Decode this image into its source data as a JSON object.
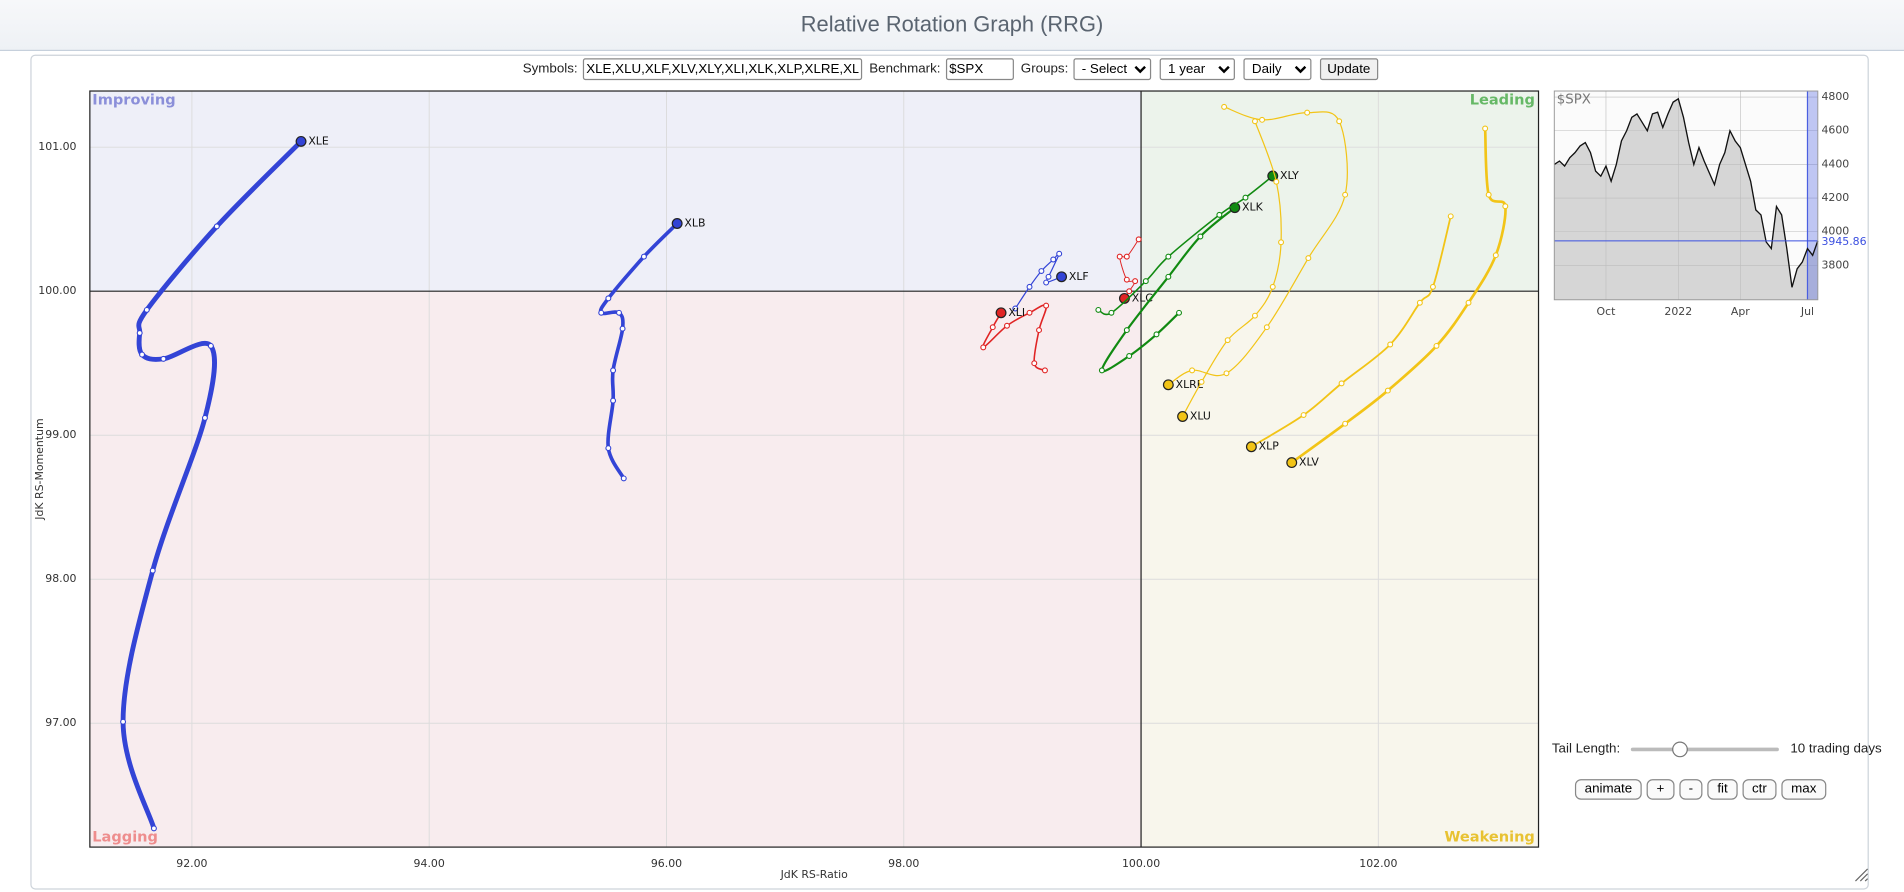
{
  "header": {
    "title": "Relative Rotation Graph (RRG)"
  },
  "controls": {
    "symbols_label": "Symbols:",
    "symbols": "XLE,XLU,XLF,XLV,XLY,XLI,XLK,XLP,XLRE,XLC,XLB",
    "benchmark_label": "Benchmark:",
    "benchmark": "$SPX",
    "groups_label": "Groups:",
    "groups": "- Select -",
    "period": "1 year",
    "frequency": "Daily",
    "update": "Update",
    "tail_length_label": "Tail Length:",
    "tail_length": "10 trading days",
    "buttons": [
      "animate",
      "+",
      "-",
      "fit",
      "ctr",
      "max"
    ]
  },
  "chart_data": [
    {
      "type": "scatter",
      "xlabel": "JdK RS-Ratio",
      "ylabel": "JdK RS-Momentum",
      "xlim": [
        91.14,
        103.35
      ],
      "ylim": [
        96.14,
        101.39
      ],
      "xticks": [
        {
          "value": 92,
          "label": "92.00"
        },
        {
          "value": 94,
          "label": "94.00"
        },
        {
          "value": 96,
          "label": "96.00"
        },
        {
          "value": 98,
          "label": "98.00"
        },
        {
          "value": 100,
          "label": "100.00"
        },
        {
          "value": 102,
          "label": "102.00"
        }
      ],
      "yticks": [
        {
          "value": 97,
          "label": "97.00"
        },
        {
          "value": 98,
          "label": "98.00"
        },
        {
          "value": 99,
          "label": "99.00"
        },
        {
          "value": 100,
          "label": "100.00"
        },
        {
          "value": 101,
          "label": "101.00"
        }
      ],
      "grid": true,
      "quadrant_center": [
        100,
        100
      ],
      "quadrants": [
        {
          "name": "Improving",
          "corner": "top-left",
          "color": "#8b8fd9",
          "background": "#eeeff8"
        },
        {
          "name": "Leading",
          "corner": "top-right",
          "color": "#66b866",
          "background": "#ecf3eb"
        },
        {
          "name": "Lagging",
          "corner": "bottom-left",
          "color": "#ee8d8d",
          "background": "#f8ecee"
        },
        {
          "name": "Weakening",
          "corner": "bottom-right",
          "color": "#e8c232",
          "background": "#f8f6ec"
        }
      ],
      "series": [
        {
          "name": "XLE",
          "color": "#3344d6",
          "width": 4,
          "x": [
            91.68,
            91.42,
            91.67,
            92.11,
            92.16,
            91.76,
            91.58,
            91.56,
            91.62,
            92.21,
            92.92
          ],
          "y": [
            96.27,
            97.01,
            98.06,
            99.12,
            99.62,
            99.53,
            99.56,
            99.71,
            99.87,
            100.45,
            101.04
          ]
        },
        {
          "name": "XLB",
          "color": "#3344d6",
          "width": 3,
          "x": [
            95.64,
            95.51,
            95.55,
            95.55,
            95.63,
            95.6,
            95.45,
            95.51,
            95.81,
            96.09
          ],
          "y": [
            98.7,
            98.91,
            99.24,
            99.45,
            99.74,
            99.85,
            99.85,
            99.95,
            100.24,
            100.47
          ]
        },
        {
          "name": "XLF",
          "color": "#3344d6",
          "width": 1,
          "x": [
            98.94,
            99.06,
            99.16,
            99.26,
            99.31,
            99.22,
            99.2,
            99.33
          ],
          "y": [
            99.88,
            100.03,
            100.14,
            100.22,
            100.26,
            100.1,
            100.06,
            100.1
          ]
        },
        {
          "name": "XLI",
          "color": "#e02424",
          "width": 1.3,
          "x": [
            99.19,
            99.1,
            99.14,
            99.2,
            99.06,
            98.87,
            98.67,
            98.75,
            98.82
          ],
          "y": [
            99.45,
            99.5,
            99.73,
            99.9,
            99.85,
            99.76,
            99.61,
            99.75,
            99.85
          ]
        },
        {
          "name": "XLC",
          "color": "#e02424",
          "width": 0.8,
          "x": [
            99.98,
            99.88,
            99.82,
            99.88,
            99.95,
            99.9,
            99.86
          ],
          "y": [
            100.36,
            100.24,
            100.24,
            100.08,
            100.07,
            100.0,
            99.95
          ]
        },
        {
          "name": "XLK",
          "color": "#118a11",
          "width": 1.8,
          "x": [
            100.32,
            100.13,
            99.9,
            99.67,
            99.88,
            100.23,
            100.5,
            100.79
          ],
          "y": [
            99.85,
            99.7,
            99.55,
            99.45,
            99.73,
            100.1,
            100.38,
            100.58
          ]
        },
        {
          "name": "XLY",
          "color": "#118a11",
          "width": 1.3,
          "x": [
            99.64,
            99.75,
            100.04,
            100.23,
            100.66,
            100.88,
            101.11
          ],
          "y": [
            99.87,
            99.85,
            100.07,
            100.24,
            100.53,
            100.65,
            100.8
          ]
        },
        {
          "name": "XLRE",
          "color": "#f2c417",
          "width": 1,
          "x": [
            100.7,
            101.02,
            101.4,
            101.67,
            101.72,
            101.41,
            101.06,
            100.72,
            100.43,
            100.23
          ],
          "y": [
            101.28,
            101.19,
            101.24,
            101.18,
            100.67,
            100.23,
            99.75,
            99.43,
            99.45,
            99.35
          ]
        },
        {
          "name": "XLU",
          "color": "#f2c417",
          "width": 1,
          "x": [
            100.96,
            101.14,
            101.18,
            101.11,
            100.96,
            100.73,
            100.51,
            100.35
          ],
          "y": [
            101.18,
            100.76,
            100.34,
            100.03,
            99.83,
            99.66,
            99.37,
            99.13
          ]
        },
        {
          "name": "XLP",
          "color": "#f2c417",
          "width": 1.5,
          "x": [
            102.61,
            102.46,
            102.35,
            102.1,
            101.69,
            101.37,
            100.93
          ],
          "y": [
            100.52,
            100.03,
            99.92,
            99.63,
            99.36,
            99.14,
            98.92
          ]
        },
        {
          "name": "XLV",
          "color": "#f2c417",
          "width": 2.2,
          "x": [
            102.9,
            102.93,
            103.07,
            102.99,
            102.76,
            102.49,
            102.08,
            101.72,
            101.27
          ],
          "y": [
            101.13,
            100.67,
            100.59,
            100.25,
            99.92,
            99.62,
            99.31,
            99.08,
            98.81
          ]
        }
      ]
    },
    {
      "type": "line",
      "title": "$SPX",
      "color": "#111111",
      "categories": [
        null,
        null,
        null,
        null,
        null,
        null,
        null,
        null,
        null,
        null,
        "Oct",
        null,
        null,
        null,
        null,
        null,
        null,
        null,
        null,
        null,
        null,
        null,
        null,
        null,
        "2022",
        null,
        null,
        null,
        null,
        null,
        null,
        null,
        null,
        null,
        null,
        null,
        "Apr",
        null,
        null,
        null,
        null,
        null,
        null,
        null,
        null,
        null,
        null,
        null,
        null,
        "Jul",
        null,
        null
      ],
      "values": [
        4400,
        4420,
        4390,
        4440,
        4470,
        4510,
        4530,
        4470,
        4360,
        4330,
        4390,
        4300,
        4400,
        4540,
        4600,
        4680,
        4700,
        4650,
        4600,
        4700,
        4710,
        4620,
        4700,
        4770,
        4790,
        4680,
        4530,
        4400,
        4500,
        4420,
        4350,
        4280,
        4400,
        4470,
        4600,
        4540,
        4500,
        4400,
        4300,
        4130,
        4100,
        3940,
        3900,
        4150,
        4100,
        3900,
        3670,
        3780,
        3820,
        3900,
        3860,
        3945.86
      ],
      "ylim": [
        3596,
        4836
      ],
      "yticks": [
        3800,
        4000,
        4200,
        4400,
        4600,
        4800
      ],
      "grid": true
    }
  ]
}
